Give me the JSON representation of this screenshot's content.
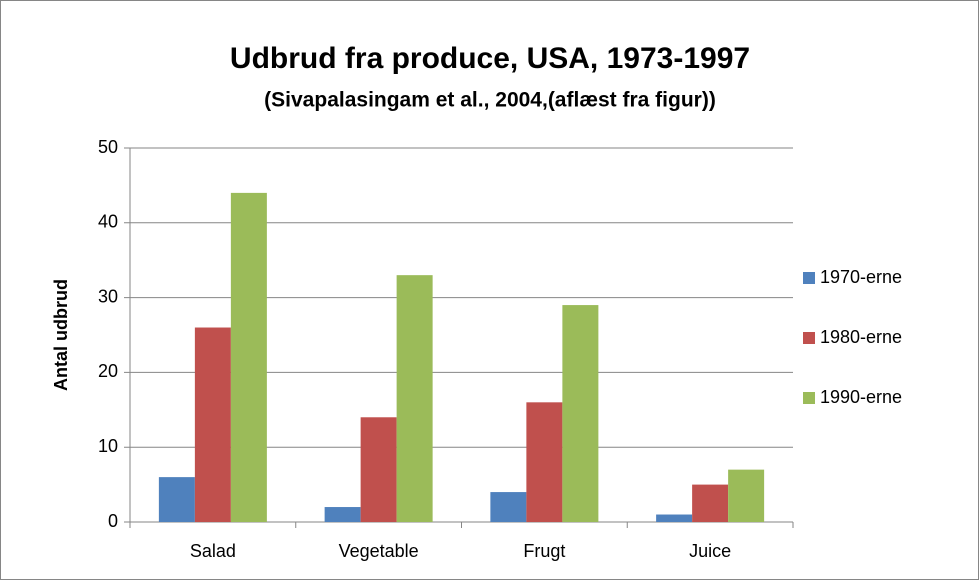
{
  "chart_data": {
    "type": "bar",
    "title": "Udbrud fra produce, USA, 1973-1997",
    "subtitle": "(Sivapalasingam et al., 2004,(aflæst fra figur))",
    "y_label": "Antal udbrud",
    "categories": [
      "Salad",
      "Vegetable",
      "Frugt",
      "Juice"
    ],
    "series": [
      {
        "name": "1970-erne",
        "color": "#4f81bd",
        "values": [
          6,
          2,
          4,
          1
        ]
      },
      {
        "name": "1980-erne",
        "color": "#c0504d",
        "values": [
          26,
          14,
          16,
          5
        ]
      },
      {
        "name": "1990-erne",
        "color": "#9bbb59",
        "values": [
          44,
          33,
          29,
          7
        ]
      }
    ],
    "ylim": [
      0,
      50
    ],
    "yticks": [
      0,
      10,
      20,
      30,
      40,
      50
    ],
    "grid": true,
    "legend": "right"
  }
}
